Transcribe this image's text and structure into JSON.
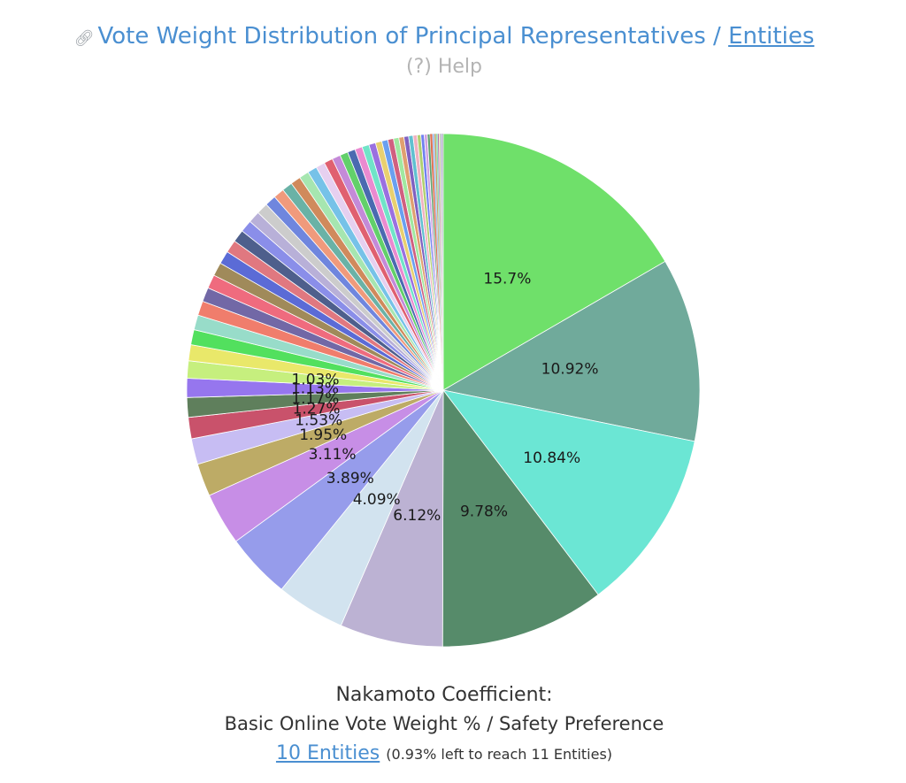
{
  "header": {
    "link_icon": "link-icon",
    "title_prefix": "Vote Weight Distribution of Principal Representatives / ",
    "title_link": "Entities",
    "help": "(?) Help"
  },
  "chart_data": {
    "type": "pie",
    "start_angle_deg": 0,
    "direction": "clockwise",
    "labeled_slices": [
      {
        "value": 15.7,
        "label": "15.7%",
        "color": "#6fe06a"
      },
      {
        "value": 10.92,
        "label": "10.92%",
        "color": "#70aa9b"
      },
      {
        "value": 10.84,
        "label": "10.84%",
        "color": "#6be6d4"
      },
      {
        "value": 9.78,
        "label": "9.78%",
        "color": "#568b6a"
      },
      {
        "value": 6.12,
        "label": "6.12%",
        "color": "#bcb2d3"
      },
      {
        "value": 4.09,
        "label": "4.09%",
        "color": "#d2e3ef"
      },
      {
        "value": 3.89,
        "label": "3.89%",
        "color": "#969ceb"
      },
      {
        "value": 3.11,
        "label": "3.11%",
        "color": "#c78ee6"
      },
      {
        "value": 1.95,
        "label": "1.95%",
        "color": "#bdab66"
      },
      {
        "value": 1.53,
        "label": "1.53%",
        "color": "#c7bdf3"
      },
      {
        "value": 1.27,
        "label": "1.27%",
        "color": "#c9526b"
      },
      {
        "value": 1.17,
        "label": "1.17%",
        "color": "#5f7f5c"
      },
      {
        "value": 1.13,
        "label": "1.13%",
        "color": "#9676ee"
      },
      {
        "value": 1.03,
        "label": "1.03%",
        "color": "#c6ef7e"
      }
    ],
    "small_slices": [
      0.95,
      0.9,
      0.88,
      0.86,
      0.84,
      0.82,
      0.8,
      0.78,
      0.76,
      0.74,
      0.72,
      0.7,
      0.68,
      0.66,
      0.64,
      0.62,
      0.6,
      0.58,
      0.56,
      0.54,
      0.52,
      0.5,
      0.48,
      0.46,
      0.44,
      0.42,
      0.4,
      0.38,
      0.36,
      0.34,
      0.32,
      0.3,
      0.28,
      0.26,
      0.24,
      0.22,
      0.2,
      0.18,
      0.16,
      0.14,
      0.12,
      0.1,
      0.09,
      0.08,
      0.07,
      0.06,
      0.05,
      0.04,
      0.03
    ],
    "small_slice_colors": [
      "#e9e86a",
      "#52e05e",
      "#98dcc9",
      "#f07d6c",
      "#7268a6",
      "#ef6b7e",
      "#a08a5a",
      "#5b6bd6",
      "#e07880",
      "#4e5f8c",
      "#8a8ee9",
      "#b8b0d8",
      "#cccccc",
      "#6f86de",
      "#f09a7c",
      "#6ab2a6",
      "#d08a5c",
      "#a6e6b0",
      "#76c2e8",
      "#e6d0f0",
      "#e06070",
      "#c48ad8",
      "#62d06a",
      "#4a6ab0",
      "#ea8ad0",
      "#70e4c8",
      "#9a70e0",
      "#e8d070",
      "#6aa0f0",
      "#d06080",
      "#a0e8a0",
      "#e0a070",
      "#8060c0",
      "#60c0d0",
      "#f0b0c0",
      "#b0d070",
      "#7080f0",
      "#d0a0e0",
      "#60a070",
      "#e07050",
      "#a0c0f0",
      "#c0a060",
      "#80e0b0",
      "#b070b0",
      "#f0e0a0",
      "#7090a0",
      "#e0b0f0",
      "#90b0d0",
      "#505050"
    ]
  },
  "footer": {
    "title": "Nakamoto Coefficient:",
    "subtitle": "Basic Online Vote Weight % / Safety Preference",
    "link": "10 Entities",
    "note": "(0.93% left to reach 11 Entities)"
  }
}
